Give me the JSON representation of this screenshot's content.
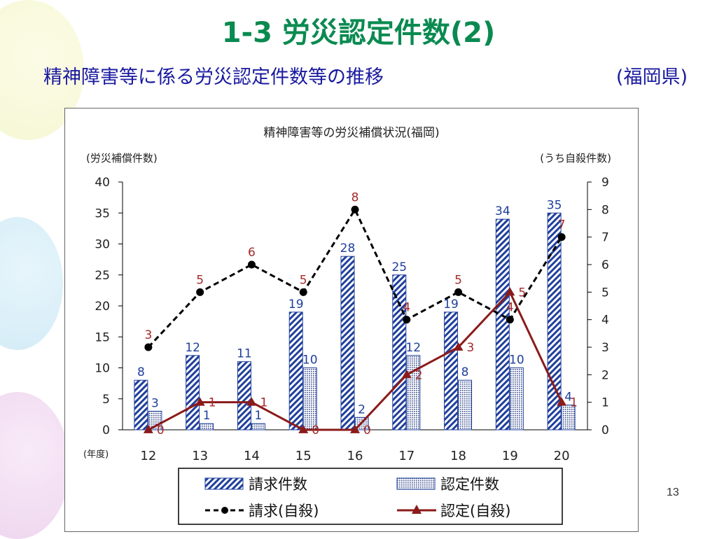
{
  "slide": {
    "title": "1-3 労災認定件数(2)",
    "subtitle": "精神障害等に係る労災認定件数等の推移",
    "region": "(福岡県)",
    "page_number": "13"
  },
  "chart_data": {
    "type": "bar",
    "title": "精神障害等の労災補償状況(福岡)",
    "ylabel_left": "(労災補償件数)",
    "ylabel_right": "(うち自殺件数)",
    "xlabel": "(年度)",
    "categories": [
      "12",
      "13",
      "14",
      "15",
      "16",
      "17",
      "18",
      "19",
      "20"
    ],
    "ylim_left": [
      0,
      40
    ],
    "yticks_left": [
      "0",
      "5",
      "10",
      "15",
      "20",
      "25",
      "30",
      "35",
      "40"
    ],
    "ylim_right": [
      0,
      9
    ],
    "yticks_right": [
      "0",
      "1",
      "2",
      "3",
      "4",
      "5",
      "6",
      "7",
      "8",
      "9"
    ],
    "series": [
      {
        "name": "請求件数",
        "type": "bar",
        "axis": "left",
        "values": [
          8,
          12,
          11,
          19,
          28,
          25,
          19,
          34,
          35
        ]
      },
      {
        "name": "認定件数",
        "type": "bar",
        "axis": "left",
        "values": [
          3,
          1,
          1,
          10,
          2,
          12,
          8,
          10,
          4
        ]
      },
      {
        "name": "請求(自殺)",
        "type": "line",
        "axis": "right",
        "values": [
          3,
          5,
          6,
          5,
          8,
          4,
          5,
          4,
          7
        ]
      },
      {
        "name": "認定(自殺)",
        "type": "line",
        "axis": "right",
        "values": [
          0,
          1,
          1,
          0,
          0,
          2,
          3,
          5,
          1
        ]
      }
    ],
    "colors": {
      "bar_stripe": "#1f3f9c",
      "bar_dot": "#3a4f8c",
      "claim_line": "#000000",
      "approved_line": "#8b1a1a",
      "label_blue": "#1f3f9c",
      "label_red": "#a52a2a"
    },
    "legend_position": "bottom",
    "grid": false
  }
}
